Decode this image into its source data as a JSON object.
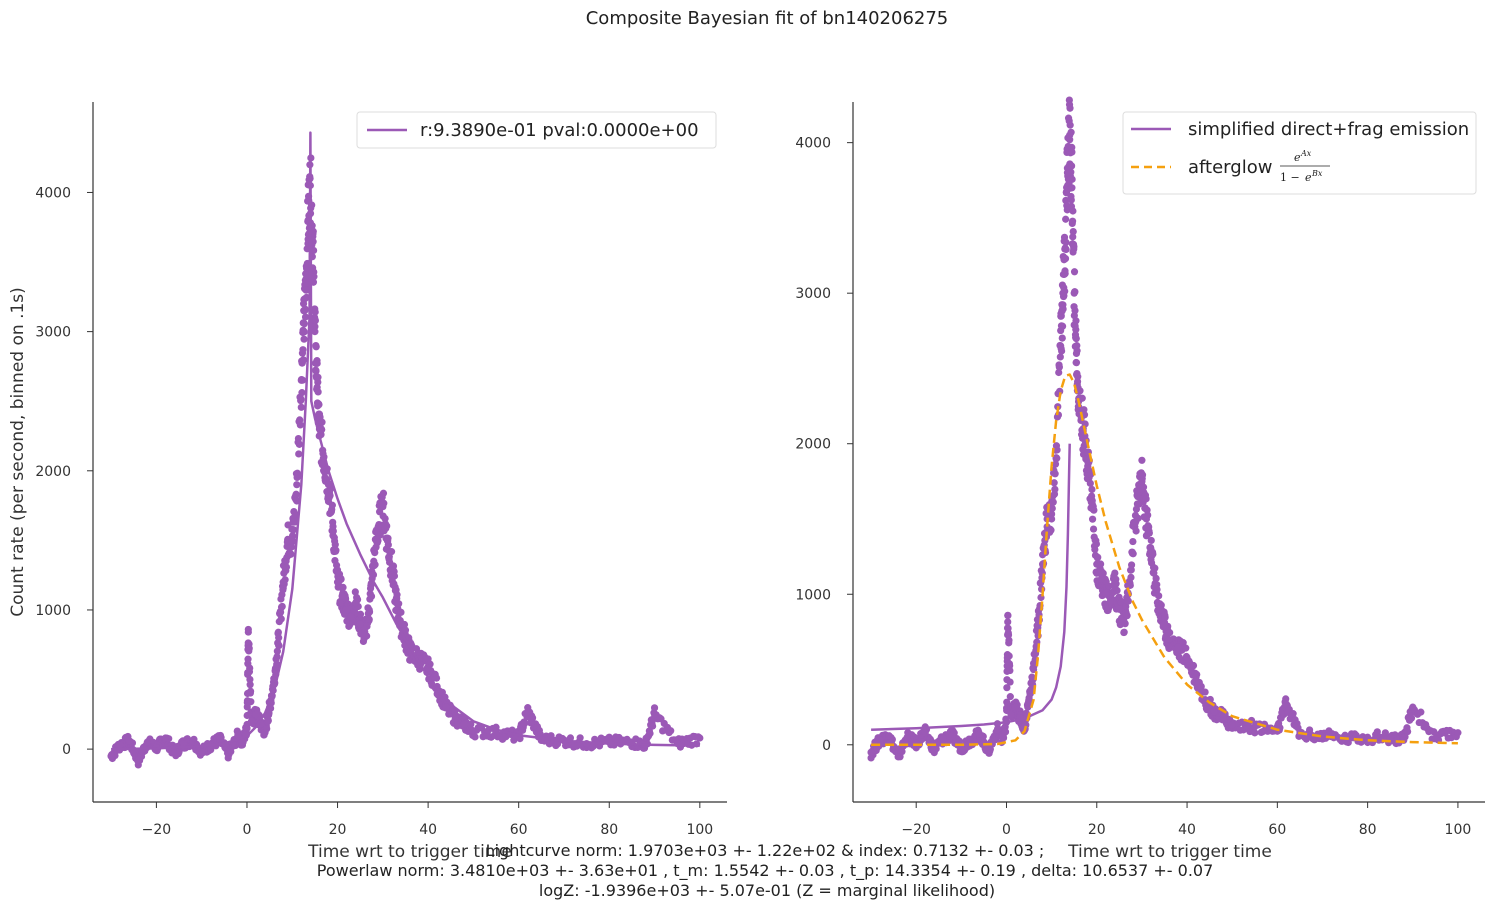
{
  "figure": {
    "title": "Composite Bayesian fit of bn140206275",
    "caption_lines": [
      "Lightcurve norm: 1.9703e+03 +- 1.22e+02 & index: 0.7132 +- 0.03 ;",
      "Powerlaw norm: 3.4810e+03 +- 3.63e+01 , t_m: 1.5542 +- 0.03 , t_p: 14.3354 +- 0.19 , delta: 10.6537 +- 0.07",
      "logZ: -1.9396e+03 +- 5.07e-01 (Z = marginal likelihood)"
    ]
  },
  "colors": {
    "data": "#9b59b6",
    "model": "#9b59b6",
    "afterglow": "#f5a00f",
    "axis": "#333333"
  },
  "chart_data": [
    {
      "type": "scatter",
      "panel": "left",
      "xlabel": "Time wrt to trigger time",
      "ylabel": "Count rate (per second, binned on .1s)",
      "xlim": [
        -34,
        106
      ],
      "ylim": [
        -380,
        4650
      ],
      "xticks": [
        "−20",
        "0",
        "20",
        "40",
        "60",
        "80",
        "100"
      ],
      "xtick_values": [
        -20,
        0,
        20,
        40,
        60,
        80,
        100
      ],
      "yticks": [
        "0",
        "1000",
        "2000",
        "3000",
        "4000"
      ],
      "ytick_values": [
        0,
        1000,
        2000,
        3000,
        4000
      ],
      "legend": [
        "r:9.3890e-01  pval:0.0000e+00"
      ],
      "legend_position": "upper right",
      "series": [
        {
          "name": "r:9.3890e-01  pval:0.0000e+00",
          "kind": "line",
          "x": [
            -30,
            -20,
            -10,
            -5,
            0,
            2,
            4,
            6,
            8,
            10,
            12,
            13,
            13.8,
            14,
            14.2,
            15,
            16,
            18,
            20,
            22,
            25,
            28,
            30,
            33,
            36,
            40,
            45,
            50,
            55,
            60,
            70,
            80,
            90,
            100
          ],
          "y": [
            0,
            5,
            20,
            40,
            95,
            160,
            260,
            420,
            700,
            1150,
            1900,
            2500,
            3100,
            4430,
            2500,
            2380,
            2250,
            2000,
            1800,
            1620,
            1400,
            1200,
            1090,
            900,
            730,
            520,
            320,
            200,
            140,
            100,
            60,
            40,
            30,
            25
          ]
        },
        {
          "name": "counts",
          "kind": "scatter",
          "x": [
            -30,
            -28,
            -26,
            -24,
            -22,
            -20,
            -18,
            -16,
            -14,
            -12,
            -10,
            -8,
            -6,
            -4,
            -2,
            -1,
            0,
            0.3,
            1,
            2,
            3,
            4,
            5,
            6,
            7,
            8,
            9,
            10,
            11,
            12,
            12.5,
            13,
            13.5,
            14,
            14.5,
            15,
            15.5,
            16,
            17,
            18,
            19,
            20,
            21,
            22,
            23,
            24,
            25,
            26,
            27,
            28,
            29,
            30,
            31,
            32,
            33,
            34,
            35,
            36,
            38,
            40,
            42,
            44,
            46,
            48,
            50,
            55,
            60,
            62,
            65,
            70,
            75,
            80,
            85,
            88,
            90,
            95,
            100
          ],
          "y": [
            -50,
            30,
            60,
            -80,
            50,
            10,
            80,
            -30,
            40,
            60,
            -20,
            30,
            70,
            -40,
            100,
            50,
            150,
            860,
            200,
            250,
            180,
            120,
            300,
            500,
            800,
            1200,
            1500,
            1500,
            1900,
            2650,
            3000,
            3300,
            3800,
            4050,
            3700,
            3000,
            2600,
            2300,
            2100,
            1900,
            1600,
            1200,
            1100,
            1000,
            950,
            1050,
            900,
            820,
            1000,
            1350,
            1600,
            1750,
            1500,
            1300,
            1050,
            900,
            800,
            700,
            650,
            580,
            450,
            300,
            220,
            180,
            130,
            120,
            90,
            270,
            70,
            60,
            40,
            50,
            50,
            30,
            250,
            40,
            80
          ]
        }
      ]
    },
    {
      "type": "scatter",
      "panel": "right",
      "xlabel": "Time wrt to trigger time",
      "ylabel": "",
      "xlim": [
        -34,
        106
      ],
      "ylim": [
        -380,
        4270
      ],
      "xticks": [
        "−20",
        "0",
        "20",
        "40",
        "60",
        "80",
        "100"
      ],
      "xtick_values": [
        -20,
        0,
        20,
        40,
        60,
        80,
        100
      ],
      "yticks": [
        "0",
        "1000",
        "2000",
        "3000",
        "4000"
      ],
      "ytick_values": [
        0,
        1000,
        2000,
        3000,
        4000
      ],
      "legend": [
        "simplified direct+frag emission",
        "afterglow"
      ],
      "legend_position": "upper right",
      "series": [
        {
          "name": "simplified direct+frag emission",
          "kind": "line",
          "x": [
            -30,
            -20,
            -10,
            -5,
            0,
            4,
            8,
            10,
            11,
            12,
            12.8,
            13.3,
            13.6,
            13.8,
            14
          ],
          "y": [
            100,
            110,
            125,
            135,
            150,
            175,
            230,
            300,
            380,
            520,
            750,
            1050,
            1400,
            1700,
            2000
          ]
        },
        {
          "name": "afterglow",
          "kind": "dashed-line",
          "x": [
            -30,
            -10,
            -2,
            2,
            4,
            6,
            7,
            8,
            9,
            10,
            11,
            12,
            13,
            14,
            15,
            16,
            18,
            20,
            22,
            25,
            28,
            30,
            35,
            40,
            45,
            50,
            60,
            70,
            80,
            90,
            100
          ],
          "y": [
            0,
            0,
            5,
            30,
            90,
            300,
            600,
            1000,
            1450,
            1850,
            2150,
            2350,
            2450,
            2460,
            2400,
            2280,
            2000,
            1720,
            1480,
            1180,
            950,
            830,
            580,
            400,
            280,
            190,
            100,
            55,
            30,
            18,
            10
          ]
        },
        {
          "name": "counts",
          "kind": "scatter",
          "x": [
            -30,
            -28,
            -26,
            -24,
            -22,
            -20,
            -18,
            -16,
            -14,
            -12,
            -10,
            -8,
            -6,
            -4,
            -2,
            -1,
            0,
            0.3,
            1,
            2,
            3,
            4,
            5,
            6,
            7,
            8,
            9,
            10,
            11,
            12,
            12.5,
            13,
            13.5,
            14,
            14.5,
            15,
            15.5,
            16,
            17,
            18,
            19,
            20,
            21,
            22,
            23,
            24,
            25,
            26,
            27,
            28,
            29,
            30,
            31,
            32,
            33,
            34,
            35,
            36,
            38,
            40,
            42,
            44,
            46,
            48,
            50,
            55,
            60,
            62,
            65,
            70,
            75,
            80,
            85,
            88,
            90,
            95,
            100
          ],
          "y": [
            -50,
            30,
            60,
            -80,
            50,
            10,
            80,
            -30,
            40,
            60,
            -20,
            30,
            70,
            -40,
            100,
            50,
            150,
            860,
            200,
            250,
            180,
            120,
            300,
            500,
            800,
            1200,
            1500,
            1500,
            1900,
            2650,
            3000,
            3300,
            3800,
            4050,
            3700,
            3000,
            2600,
            2300,
            2100,
            1900,
            1600,
            1200,
            1100,
            1000,
            950,
            1050,
            900,
            820,
            1000,
            1350,
            1600,
            1750,
            1500,
            1300,
            1050,
            900,
            800,
            700,
            650,
            580,
            450,
            300,
            220,
            180,
            130,
            120,
            90,
            270,
            70,
            60,
            40,
            50,
            50,
            30,
            250,
            40,
            80
          ]
        }
      ]
    }
  ]
}
